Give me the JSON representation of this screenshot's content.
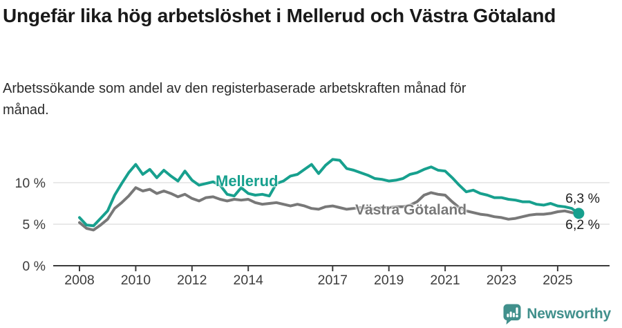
{
  "header": {
    "title": "Ungefär lika hög arbetslöshet i Mellerud och Västra Götaland",
    "subtitle": "Arbetssökande som andel av den registerbaserade arbetskraften månad för månad."
  },
  "chart_data": {
    "type": "line",
    "title": "Ungefär lika hög arbetslöshet i Mellerud och Västra Götaland",
    "subtitle": "Arbetssökande som andel av den registerbaserade arbetskraften månad för månad.",
    "unit": "%",
    "grid": "horizontal-only",
    "x_range": [
      2008,
      2025.75
    ],
    "ylim": [
      0,
      13.5
    ],
    "x_axis": {
      "ticks": [
        {
          "year": 2008,
          "label": "2008"
        },
        {
          "year": 2010,
          "label": "2010"
        },
        {
          "year": 2012,
          "label": "2012"
        },
        {
          "year": 2014,
          "label": "2014"
        },
        {
          "year": 2017,
          "label": "2017"
        },
        {
          "year": 2019,
          "label": "2019"
        },
        {
          "year": 2021,
          "label": "2021"
        },
        {
          "year": 2023,
          "label": "2023"
        },
        {
          "year": 2025,
          "label": "2025"
        }
      ]
    },
    "y_axis": {
      "ticks": [
        {
          "value": 0,
          "label": "0 %"
        },
        {
          "value": 5,
          "label": "5 %"
        },
        {
          "value": 10,
          "label": "10 %"
        }
      ]
    },
    "series": [
      {
        "name": "Mellerud",
        "color": "#17a08e",
        "end_label": "6,3 %",
        "end_value": 6.3,
        "marker_end": true,
        "points": [
          [
            2008.0,
            5.8
          ],
          [
            2008.25,
            4.9
          ],
          [
            2008.5,
            4.8
          ],
          [
            2008.75,
            5.7
          ],
          [
            2009.0,
            6.6
          ],
          [
            2009.25,
            8.5
          ],
          [
            2009.5,
            9.9
          ],
          [
            2009.75,
            11.2
          ],
          [
            2010.0,
            12.2
          ],
          [
            2010.25,
            11.0
          ],
          [
            2010.5,
            11.6
          ],
          [
            2010.75,
            10.6
          ],
          [
            2011.0,
            11.5
          ],
          [
            2011.25,
            10.8
          ],
          [
            2011.5,
            10.2
          ],
          [
            2011.75,
            11.4
          ],
          [
            2012.0,
            10.3
          ],
          [
            2012.25,
            9.7
          ],
          [
            2012.5,
            9.9
          ],
          [
            2012.75,
            10.1
          ],
          [
            2013.0,
            9.7
          ],
          [
            2013.25,
            8.6
          ],
          [
            2013.5,
            8.4
          ],
          [
            2013.75,
            9.4
          ],
          [
            2014.0,
            8.7
          ],
          [
            2014.25,
            8.5
          ],
          [
            2014.5,
            8.6
          ],
          [
            2014.75,
            8.4
          ],
          [
            2015.0,
            9.9
          ],
          [
            2015.25,
            10.2
          ],
          [
            2015.5,
            10.8
          ],
          [
            2015.75,
            11.0
          ],
          [
            2016.0,
            11.6
          ],
          [
            2016.25,
            12.2
          ],
          [
            2016.5,
            11.1
          ],
          [
            2016.75,
            12.1
          ],
          [
            2017.0,
            12.8
          ],
          [
            2017.25,
            12.7
          ],
          [
            2017.5,
            11.7
          ],
          [
            2017.75,
            11.5
          ],
          [
            2018.0,
            11.2
          ],
          [
            2018.25,
            10.9
          ],
          [
            2018.5,
            10.5
          ],
          [
            2018.75,
            10.4
          ],
          [
            2019.0,
            10.2
          ],
          [
            2019.25,
            10.3
          ],
          [
            2019.5,
            10.5
          ],
          [
            2019.75,
            11.0
          ],
          [
            2020.0,
            11.2
          ],
          [
            2020.25,
            11.6
          ],
          [
            2020.5,
            11.9
          ],
          [
            2020.75,
            11.5
          ],
          [
            2021.0,
            11.4
          ],
          [
            2021.25,
            10.6
          ],
          [
            2021.5,
            9.7
          ],
          [
            2021.75,
            8.9
          ],
          [
            2022.0,
            9.1
          ],
          [
            2022.25,
            8.7
          ],
          [
            2022.5,
            8.5
          ],
          [
            2022.75,
            8.2
          ],
          [
            2023.0,
            8.2
          ],
          [
            2023.25,
            8.0
          ],
          [
            2023.5,
            7.9
          ],
          [
            2023.75,
            7.7
          ],
          [
            2024.0,
            7.7
          ],
          [
            2024.25,
            7.4
          ],
          [
            2024.5,
            7.3
          ],
          [
            2024.75,
            7.5
          ],
          [
            2025.0,
            7.2
          ],
          [
            2025.25,
            7.1
          ],
          [
            2025.5,
            6.9
          ],
          [
            2025.75,
            6.3
          ]
        ]
      },
      {
        "name": "Västra Götaland",
        "color": "#787878",
        "end_label": "6,2 %",
        "end_value": 6.2,
        "marker_end": false,
        "points": [
          [
            2008.0,
            5.2
          ],
          [
            2008.25,
            4.5
          ],
          [
            2008.5,
            4.3
          ],
          [
            2008.75,
            4.9
          ],
          [
            2009.0,
            5.6
          ],
          [
            2009.25,
            6.9
          ],
          [
            2009.5,
            7.6
          ],
          [
            2009.75,
            8.4
          ],
          [
            2010.0,
            9.4
          ],
          [
            2010.25,
            9.0
          ],
          [
            2010.5,
            9.2
          ],
          [
            2010.75,
            8.7
          ],
          [
            2011.0,
            9.0
          ],
          [
            2011.25,
            8.7
          ],
          [
            2011.5,
            8.3
          ],
          [
            2011.75,
            8.6
          ],
          [
            2012.0,
            8.1
          ],
          [
            2012.25,
            7.8
          ],
          [
            2012.5,
            8.2
          ],
          [
            2012.75,
            8.3
          ],
          [
            2013.0,
            8.0
          ],
          [
            2013.25,
            7.8
          ],
          [
            2013.5,
            8.0
          ],
          [
            2013.75,
            7.9
          ],
          [
            2014.0,
            8.0
          ],
          [
            2014.25,
            7.6
          ],
          [
            2014.5,
            7.4
          ],
          [
            2014.75,
            7.5
          ],
          [
            2015.0,
            7.6
          ],
          [
            2015.25,
            7.4
          ],
          [
            2015.5,
            7.2
          ],
          [
            2015.75,
            7.4
          ],
          [
            2016.0,
            7.2
          ],
          [
            2016.25,
            6.9
          ],
          [
            2016.5,
            6.8
          ],
          [
            2016.75,
            7.1
          ],
          [
            2017.0,
            7.2
          ],
          [
            2017.25,
            7.0
          ],
          [
            2017.5,
            6.8
          ],
          [
            2017.75,
            6.9
          ],
          [
            2018.0,
            7.0
          ],
          [
            2018.25,
            6.9
          ],
          [
            2018.5,
            6.8
          ],
          [
            2018.75,
            7.0
          ],
          [
            2019.0,
            7.0
          ],
          [
            2019.25,
            7.1
          ],
          [
            2019.5,
            7.1
          ],
          [
            2019.75,
            7.3
          ],
          [
            2020.0,
            7.7
          ],
          [
            2020.25,
            8.5
          ],
          [
            2020.5,
            8.8
          ],
          [
            2020.75,
            8.6
          ],
          [
            2021.0,
            8.5
          ],
          [
            2021.25,
            7.7
          ],
          [
            2021.5,
            7.0
          ],
          [
            2021.75,
            6.6
          ],
          [
            2022.0,
            6.4
          ],
          [
            2022.25,
            6.2
          ],
          [
            2022.5,
            6.1
          ],
          [
            2022.75,
            5.9
          ],
          [
            2023.0,
            5.8
          ],
          [
            2023.25,
            5.6
          ],
          [
            2023.5,
            5.7
          ],
          [
            2023.75,
            5.9
          ],
          [
            2024.0,
            6.1
          ],
          [
            2024.25,
            6.2
          ],
          [
            2024.5,
            6.2
          ],
          [
            2024.75,
            6.3
          ],
          [
            2025.0,
            6.5
          ],
          [
            2025.25,
            6.6
          ],
          [
            2025.5,
            6.4
          ],
          [
            2025.75,
            6.2
          ]
        ]
      }
    ],
    "colors": {
      "axis": "#3a3a3a",
      "gridline": "#e2e2e2",
      "tick_text": "#3c3c3c"
    }
  },
  "footer": {
    "brand": "Newsworthy",
    "brand_color": "#41908c"
  }
}
